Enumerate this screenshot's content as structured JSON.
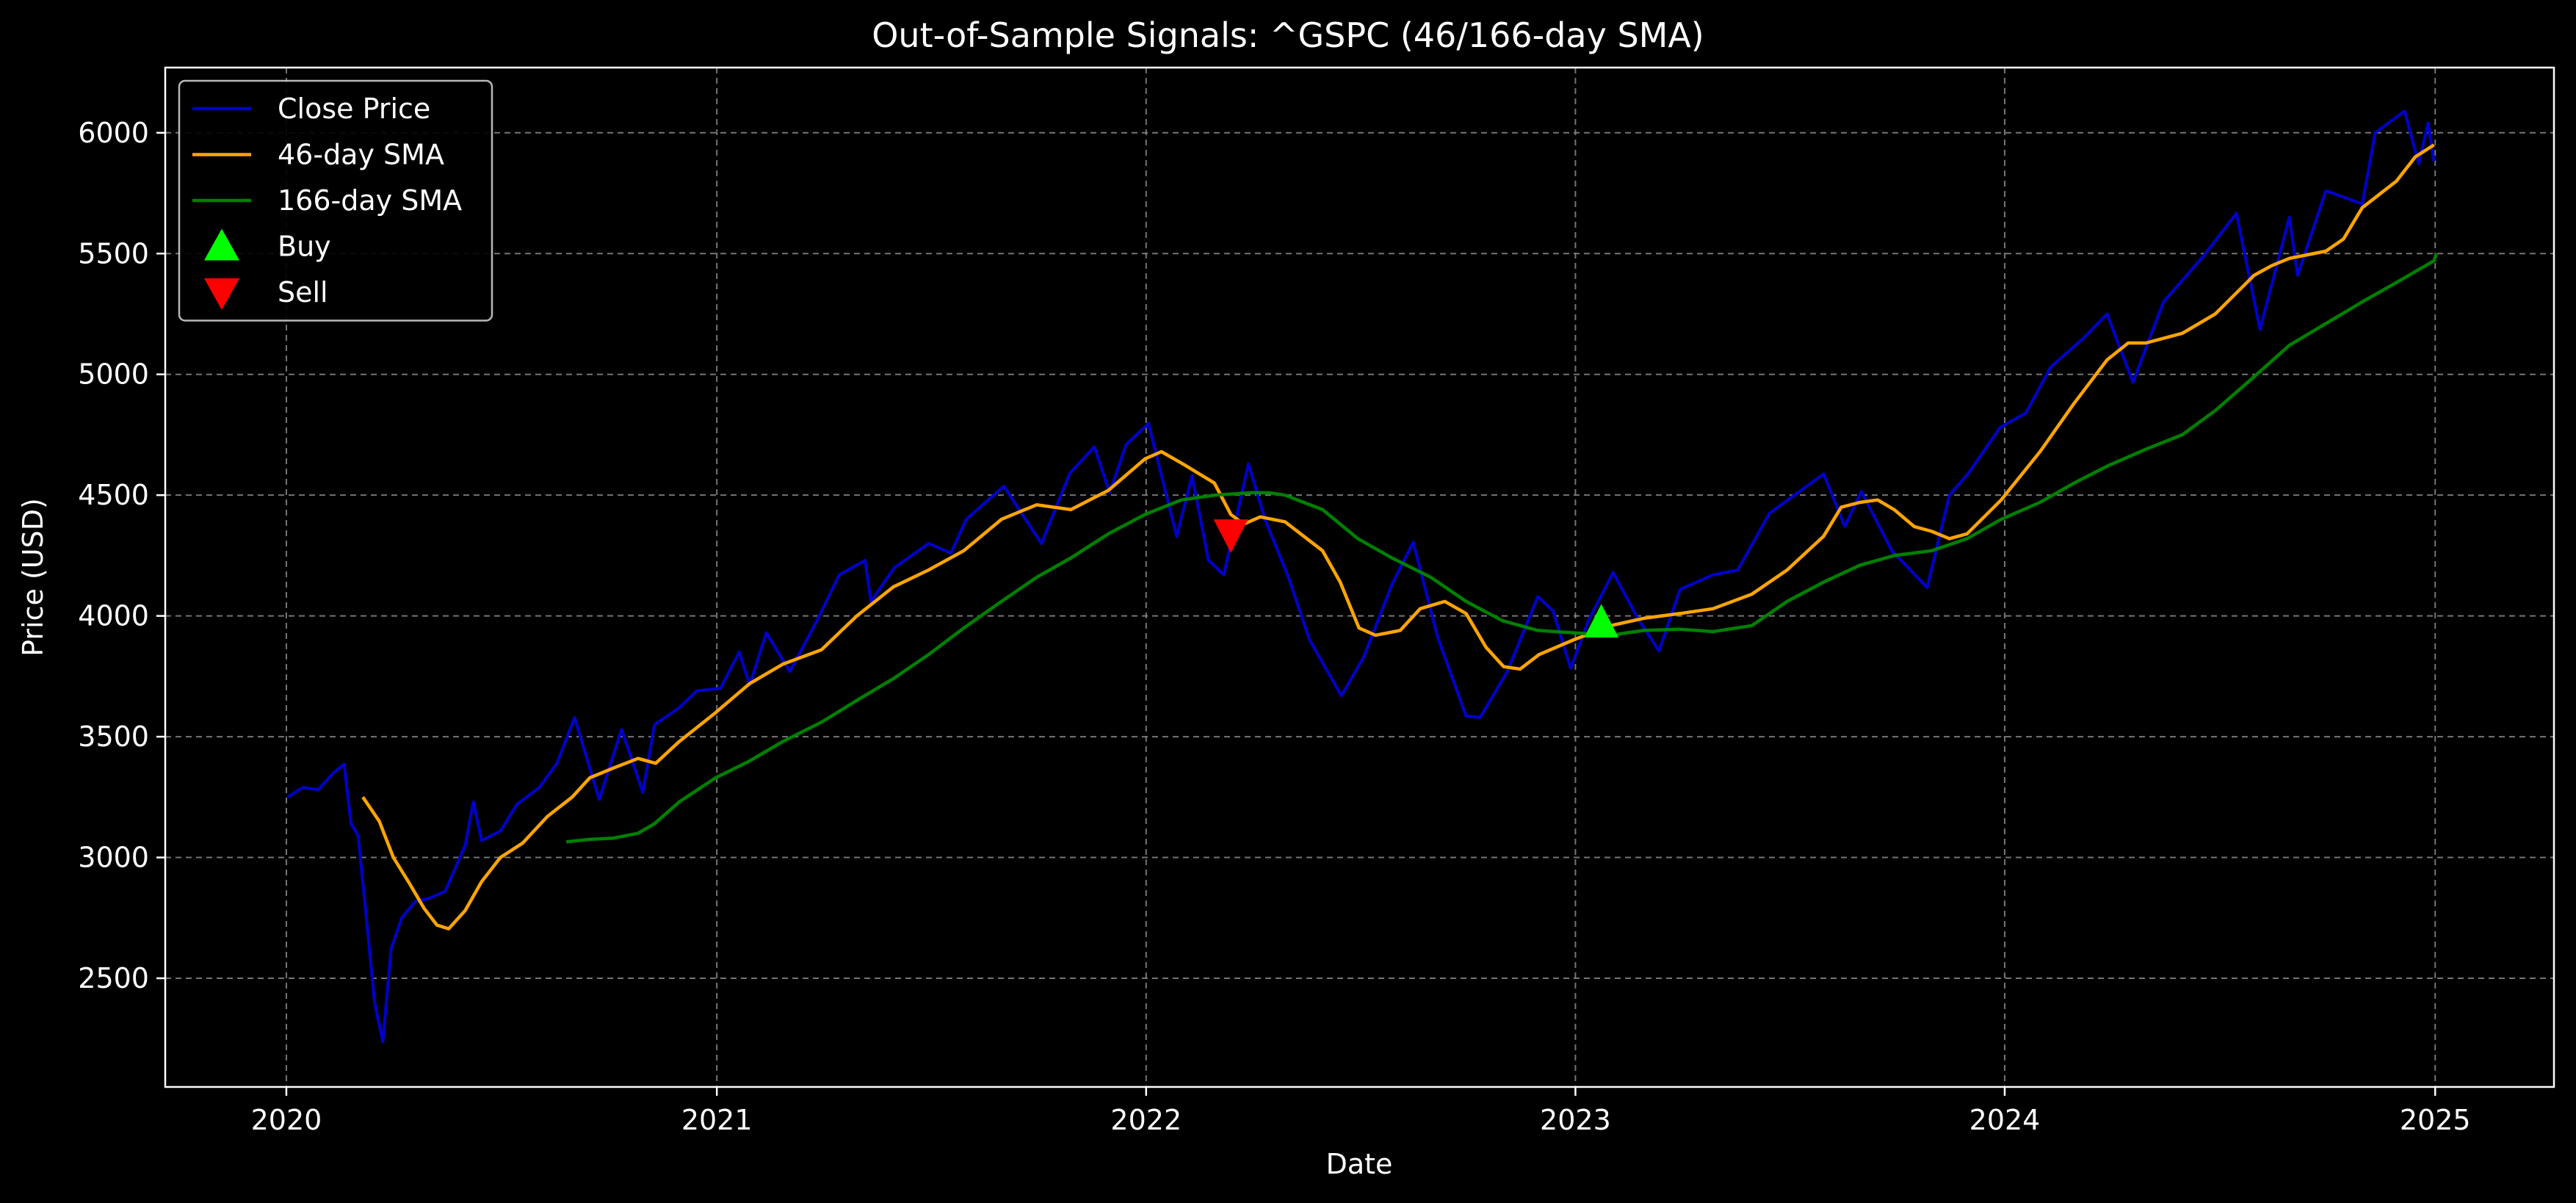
{
  "chart_data": {
    "type": "line",
    "title": "Out-of-Sample Signals: ^GSPC (46/166-day SMA)",
    "xlabel": "Date",
    "ylabel": "Price (USD)",
    "xlim": [
      "2019-09-20",
      "2025-04-12"
    ],
    "ylim": [
      2050,
      6270
    ],
    "x_ticks": [
      "2020",
      "2021",
      "2022",
      "2023",
      "2024",
      "2025"
    ],
    "x_tick_dates": [
      "2020-01-01",
      "2021-01-01",
      "2022-01-01",
      "2023-01-01",
      "2024-01-01",
      "2025-01-01"
    ],
    "y_ticks": [
      2500,
      3000,
      3500,
      4000,
      4500,
      5000,
      5500,
      6000
    ],
    "grid": true,
    "legend_position": "upper left",
    "colors": {
      "close": "#0000cd",
      "sma_short": "#ffa500",
      "sma_long": "#008000",
      "buy": "#00ff00",
      "sell": "#ff0000",
      "background": "#000000",
      "foreground": "#ffffff"
    },
    "series": [
      {
        "name": "Close Price",
        "points": [
          [
            "2020-01-02",
            3250
          ],
          [
            "2020-01-15",
            3290
          ],
          [
            "2020-01-28",
            3280
          ],
          [
            "2020-02-10",
            3350
          ],
          [
            "2020-02-19",
            3386
          ],
          [
            "2020-02-25",
            3140
          ],
          [
            "2020-03-02",
            3090
          ],
          [
            "2020-03-09",
            2750
          ],
          [
            "2020-03-16",
            2400
          ],
          [
            "2020-03-23",
            2237
          ],
          [
            "2020-03-30",
            2620
          ],
          [
            "2020-04-08",
            2750
          ],
          [
            "2020-04-20",
            2820
          ],
          [
            "2020-05-01",
            2830
          ],
          [
            "2020-05-15",
            2860
          ],
          [
            "2020-06-01",
            3050
          ],
          [
            "2020-06-08",
            3230
          ],
          [
            "2020-06-15",
            3070
          ],
          [
            "2020-07-01",
            3110
          ],
          [
            "2020-07-15",
            3220
          ],
          [
            "2020-08-03",
            3290
          ],
          [
            "2020-08-18",
            3390
          ],
          [
            "2020-09-02",
            3580
          ],
          [
            "2020-09-23",
            3240
          ],
          [
            "2020-10-12",
            3530
          ],
          [
            "2020-10-30",
            3270
          ],
          [
            "2020-11-09",
            3550
          ],
          [
            "2020-11-30",
            3620
          ],
          [
            "2020-12-15",
            3690
          ],
          [
            "2021-01-04",
            3700
          ],
          [
            "2021-01-20",
            3850
          ],
          [
            "2021-01-29",
            3714
          ],
          [
            "2021-02-12",
            3930
          ],
          [
            "2021-03-04",
            3770
          ],
          [
            "2021-03-26",
            3970
          ],
          [
            "2021-04-15",
            4170
          ],
          [
            "2021-05-07",
            4230
          ],
          [
            "2021-05-12",
            4060
          ],
          [
            "2021-06-01",
            4200
          ],
          [
            "2021-06-30",
            4300
          ],
          [
            "2021-07-19",
            4260
          ],
          [
            "2021-08-01",
            4400
          ],
          [
            "2021-09-02",
            4537
          ],
          [
            "2021-10-04",
            4300
          ],
          [
            "2021-10-28",
            4590
          ],
          [
            "2021-11-18",
            4700
          ],
          [
            "2021-12-01",
            4510
          ],
          [
            "2021-12-15",
            4710
          ],
          [
            "2022-01-03",
            4796
          ],
          [
            "2022-01-27",
            4330
          ],
          [
            "2022-02-09",
            4580
          ],
          [
            "2022-02-23",
            4230
          ],
          [
            "2022-03-08",
            4170
          ],
          [
            "2022-03-29",
            4630
          ],
          [
            "2022-04-12",
            4400
          ],
          [
            "2022-05-02",
            4160
          ],
          [
            "2022-05-20",
            3900
          ],
          [
            "2022-06-16",
            3670
          ],
          [
            "2022-07-05",
            3830
          ],
          [
            "2022-07-29",
            4130
          ],
          [
            "2022-08-16",
            4305
          ],
          [
            "2022-09-06",
            3910
          ],
          [
            "2022-09-30",
            3585
          ],
          [
            "2022-10-12",
            3580
          ],
          [
            "2022-11-04",
            3770
          ],
          [
            "2022-11-30",
            4080
          ],
          [
            "2022-12-13",
            4020
          ],
          [
            "2022-12-28",
            3783
          ],
          [
            "2023-01-12",
            3980
          ],
          [
            "2023-02-02",
            4180
          ],
          [
            "2023-02-23",
            3990
          ],
          [
            "2023-03-13",
            3855
          ],
          [
            "2023-03-31",
            4110
          ],
          [
            "2023-04-28",
            4170
          ],
          [
            "2023-05-19",
            4190
          ],
          [
            "2023-06-15",
            4425
          ],
          [
            "2023-07-31",
            4588
          ],
          [
            "2023-08-18",
            4370
          ],
          [
            "2023-09-01",
            4515
          ],
          [
            "2023-09-27",
            4270
          ],
          [
            "2023-10-27",
            4117
          ],
          [
            "2023-11-15",
            4500
          ],
          [
            "2023-12-01",
            4590
          ],
          [
            "2023-12-28",
            4780
          ],
          [
            "2024-01-19",
            4840
          ],
          [
            "2024-02-09",
            5030
          ],
          [
            "2024-03-08",
            5150
          ],
          [
            "2024-03-28",
            5250
          ],
          [
            "2024-04-19",
            4967
          ],
          [
            "2024-05-15",
            5300
          ],
          [
            "2024-06-18",
            5490
          ],
          [
            "2024-07-16",
            5667
          ],
          [
            "2024-08-05",
            5186
          ],
          [
            "2024-08-30",
            5650
          ],
          [
            "2024-09-06",
            5410
          ],
          [
            "2024-09-30",
            5760
          ],
          [
            "2024-10-31",
            5705
          ],
          [
            "2024-11-11",
            6000
          ],
          [
            "2024-12-06",
            6090
          ],
          [
            "2024-12-18",
            5872
          ],
          [
            "2024-12-26",
            6040
          ],
          [
            "2024-12-31",
            5882
          ]
        ]
      },
      {
        "name": "46-day SMA",
        "points": [
          [
            "2020-03-06",
            3250
          ],
          [
            "2020-03-20",
            3150
          ],
          [
            "2020-04-01",
            3000
          ],
          [
            "2020-04-15",
            2890
          ],
          [
            "2020-04-27",
            2790
          ],
          [
            "2020-05-08",
            2720
          ],
          [
            "2020-05-18",
            2705
          ],
          [
            "2020-06-01",
            2780
          ],
          [
            "2020-06-15",
            2900
          ],
          [
            "2020-07-01",
            3000
          ],
          [
            "2020-07-20",
            3060
          ],
          [
            "2020-08-10",
            3170
          ],
          [
            "2020-08-31",
            3250
          ],
          [
            "2020-09-15",
            3330
          ],
          [
            "2020-10-05",
            3370
          ],
          [
            "2020-10-26",
            3410
          ],
          [
            "2020-11-10",
            3390
          ],
          [
            "2020-11-30",
            3480
          ],
          [
            "2020-12-31",
            3600
          ],
          [
            "2021-01-29",
            3720
          ],
          [
            "2021-02-26",
            3800
          ],
          [
            "2021-03-31",
            3860
          ],
          [
            "2021-04-30",
            4000
          ],
          [
            "2021-05-31",
            4120
          ],
          [
            "2021-06-30",
            4190
          ],
          [
            "2021-07-30",
            4270
          ],
          [
            "2021-08-31",
            4400
          ],
          [
            "2021-09-30",
            4460
          ],
          [
            "2021-10-29",
            4440
          ],
          [
            "2021-11-30",
            4520
          ],
          [
            "2021-12-31",
            4650
          ],
          [
            "2022-01-14",
            4680
          ],
          [
            "2022-02-01",
            4630
          ],
          [
            "2022-02-28",
            4550
          ],
          [
            "2022-03-14",
            4420
          ],
          [
            "2022-03-25",
            4380
          ],
          [
            "2022-04-08",
            4410
          ],
          [
            "2022-04-29",
            4390
          ],
          [
            "2022-05-31",
            4270
          ],
          [
            "2022-06-15",
            4140
          ],
          [
            "2022-07-01",
            3950
          ],
          [
            "2022-07-15",
            3920
          ],
          [
            "2022-08-05",
            3940
          ],
          [
            "2022-08-22",
            4030
          ],
          [
            "2022-09-12",
            4060
          ],
          [
            "2022-09-30",
            4010
          ],
          [
            "2022-10-17",
            3870
          ],
          [
            "2022-11-01",
            3790
          ],
          [
            "2022-11-15",
            3780
          ],
          [
            "2022-12-01",
            3840
          ],
          [
            "2022-12-30",
            3900
          ],
          [
            "2023-01-31",
            3960
          ],
          [
            "2023-02-28",
            3990
          ],
          [
            "2023-03-31",
            4010
          ],
          [
            "2023-04-28",
            4030
          ],
          [
            "2023-05-31",
            4090
          ],
          [
            "2023-06-30",
            4190
          ],
          [
            "2023-07-31",
            4330
          ],
          [
            "2023-08-15",
            4450
          ],
          [
            "2023-08-31",
            4470
          ],
          [
            "2023-09-15",
            4480
          ],
          [
            "2023-09-29",
            4440
          ],
          [
            "2023-10-16",
            4370
          ],
          [
            "2023-10-31",
            4350
          ],
          [
            "2023-11-15",
            4320
          ],
          [
            "2023-11-30",
            4340
          ],
          [
            "2023-12-29",
            4480
          ],
          [
            "2024-01-31",
            4680
          ],
          [
            "2024-02-29",
            4880
          ],
          [
            "2024-03-28",
            5060
          ],
          [
            "2024-04-15",
            5130
          ],
          [
            "2024-04-30",
            5130
          ],
          [
            "2024-05-31",
            5170
          ],
          [
            "2024-06-28",
            5250
          ],
          [
            "2024-07-31",
            5410
          ],
          [
            "2024-08-15",
            5450
          ],
          [
            "2024-08-30",
            5480
          ],
          [
            "2024-09-30",
            5510
          ],
          [
            "2024-10-15",
            5560
          ],
          [
            "2024-10-31",
            5690
          ],
          [
            "2024-11-29",
            5800
          ],
          [
            "2024-12-15",
            5900
          ],
          [
            "2024-12-31",
            5950
          ]
        ]
      },
      {
        "name": "166-day SMA",
        "points": [
          [
            "2020-08-26",
            3065
          ],
          [
            "2020-09-15",
            3075
          ],
          [
            "2020-10-05",
            3080
          ],
          [
            "2020-10-26",
            3100
          ],
          [
            "2020-11-09",
            3140
          ],
          [
            "2020-11-30",
            3230
          ],
          [
            "2020-12-31",
            3330
          ],
          [
            "2021-01-29",
            3400
          ],
          [
            "2021-02-26",
            3480
          ],
          [
            "2021-03-31",
            3560
          ],
          [
            "2021-04-30",
            3650
          ],
          [
            "2021-05-31",
            3740
          ],
          [
            "2021-06-30",
            3840
          ],
          [
            "2021-07-30",
            3950
          ],
          [
            "2021-08-31",
            4060
          ],
          [
            "2021-09-30",
            4160
          ],
          [
            "2021-10-29",
            4240
          ],
          [
            "2021-11-30",
            4340
          ],
          [
            "2021-12-31",
            4420
          ],
          [
            "2022-01-31",
            4480
          ],
          [
            "2022-02-28",
            4500
          ],
          [
            "2022-03-31",
            4510
          ],
          [
            "2022-04-15",
            4510
          ],
          [
            "2022-04-29",
            4500
          ],
          [
            "2022-05-31",
            4440
          ],
          [
            "2022-06-30",
            4320
          ],
          [
            "2022-07-29",
            4240
          ],
          [
            "2022-08-31",
            4160
          ],
          [
            "2022-09-30",
            4060
          ],
          [
            "2022-10-31",
            3980
          ],
          [
            "2022-11-30",
            3940
          ],
          [
            "2022-12-30",
            3930
          ],
          [
            "2023-01-31",
            3920
          ],
          [
            "2023-02-28",
            3940
          ],
          [
            "2023-03-31",
            3945
          ],
          [
            "2023-04-28",
            3935
          ],
          [
            "2023-05-31",
            3960
          ],
          [
            "2023-06-30",
            4060
          ],
          [
            "2023-07-31",
            4140
          ],
          [
            "2023-08-31",
            4210
          ],
          [
            "2023-09-29",
            4250
          ],
          [
            "2023-10-31",
            4270
          ],
          [
            "2023-11-30",
            4320
          ],
          [
            "2023-12-29",
            4400
          ],
          [
            "2024-01-31",
            4470
          ],
          [
            "2024-02-29",
            4550
          ],
          [
            "2024-03-28",
            4620
          ],
          [
            "2024-04-30",
            4690
          ],
          [
            "2024-05-31",
            4750
          ],
          [
            "2024-06-28",
            4850
          ],
          [
            "2024-07-31",
            4990
          ],
          [
            "2024-08-30",
            5120
          ],
          [
            "2024-09-30",
            5210
          ],
          [
            "2024-10-31",
            5300
          ],
          [
            "2024-11-29",
            5380
          ],
          [
            "2024-12-31",
            5470
          ],
          [
            "2025-01-02",
            5500
          ],
          [
            "2024-12-31",
            5470
          ]
        ]
      }
    ],
    "signals": [
      {
        "name": "Sell",
        "type": "sell",
        "date": "2022-03-14",
        "price": 4340
      },
      {
        "name": "Buy",
        "type": "buy",
        "date": "2023-01-23",
        "price": 3970
      }
    ],
    "legend": [
      {
        "label": "Close Price",
        "kind": "line",
        "color": "#0000cd"
      },
      {
        "label": "46-day SMA",
        "kind": "line",
        "color": "#ffa500"
      },
      {
        "label": "166-day SMA",
        "kind": "line",
        "color": "#008000"
      },
      {
        "label": "Buy",
        "kind": "up-triangle",
        "color": "#00ff00"
      },
      {
        "label": "Sell",
        "kind": "down-triangle",
        "color": "#ff0000"
      }
    ]
  }
}
